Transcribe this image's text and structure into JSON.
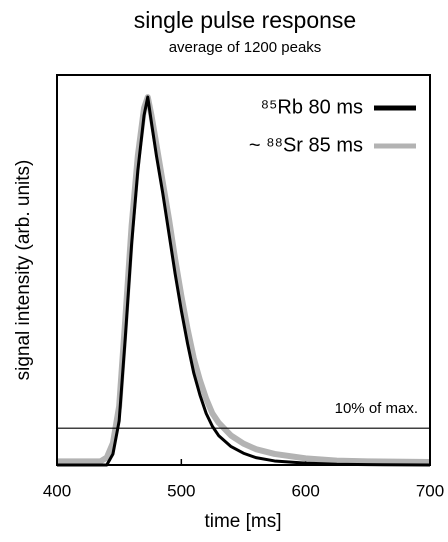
{
  "chart_data": {
    "type": "line",
    "title": "single pulse response",
    "subtitle": "average of 1200 peaks",
    "xlabel": "time [ms]",
    "ylabel": "signal intensity (arb. units)",
    "x": [
      400,
      435,
      440,
      445,
      450,
      455,
      460,
      465,
      470,
      473,
      476,
      480,
      485,
      490,
      495,
      500,
      505,
      510,
      515,
      520,
      525,
      530,
      540,
      550,
      560,
      575,
      600,
      625,
      650,
      700
    ],
    "series": [
      {
        "name": "~ ⁸⁸Sr 85 ms",
        "color": "#b3b3b3",
        "values": [
          0.01,
          0.01,
          0.02,
          0.06,
          0.16,
          0.4,
          0.65,
          0.84,
          0.97,
          1.0,
          0.95,
          0.87,
          0.77,
          0.67,
          0.56,
          0.46,
          0.37,
          0.29,
          0.23,
          0.18,
          0.14,
          0.115,
          0.08,
          0.058,
          0.043,
          0.03,
          0.018,
          0.012,
          0.01,
          0.008
        ]
      },
      {
        "name": "⁸⁵Rb 80 ms",
        "color": "#000000",
        "values": [
          0,
          0,
          0,
          0.03,
          0.12,
          0.35,
          0.6,
          0.8,
          0.95,
          1.0,
          0.93,
          0.84,
          0.74,
          0.63,
          0.52,
          0.42,
          0.33,
          0.25,
          0.19,
          0.14,
          0.105,
          0.08,
          0.05,
          0.032,
          0.02,
          0.011,
          0.005,
          0.002,
          0.001,
          0
        ]
      }
    ],
    "xlim": [
      400,
      700
    ],
    "xticks": [
      400,
      500,
      600,
      700
    ],
    "ylim": [
      0,
      1.06
    ],
    "hline": 0.1,
    "hline_label": "10% of max.",
    "legend": "upper right"
  }
}
